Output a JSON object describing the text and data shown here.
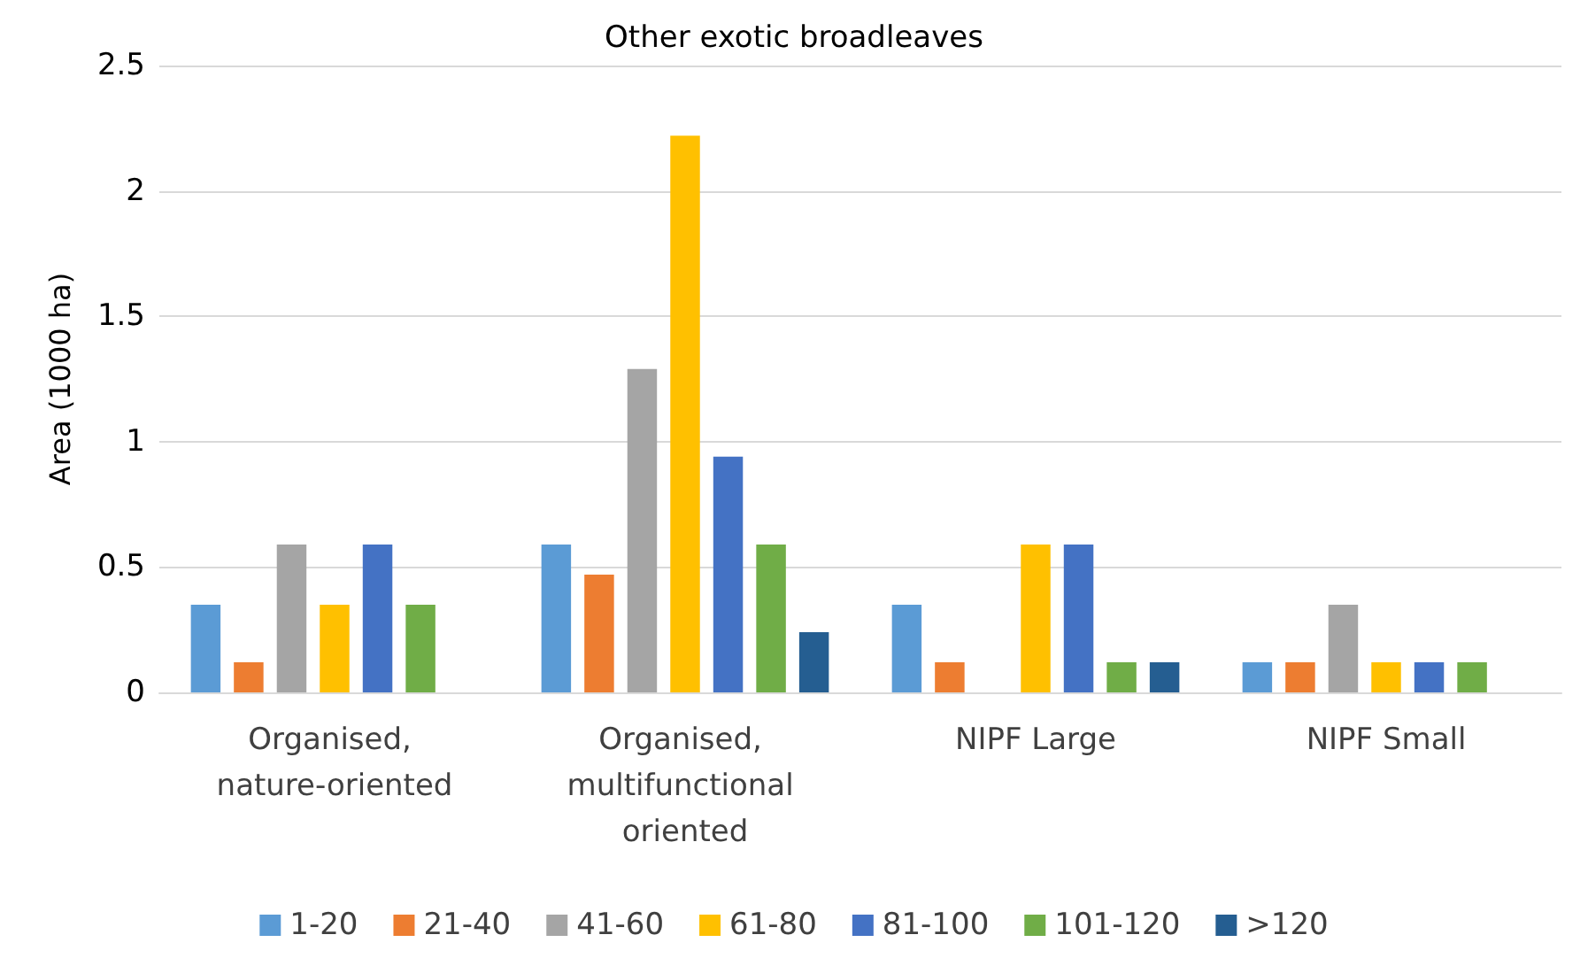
{
  "chart_data": {
    "type": "bar",
    "title": "Other exotic broadleaves",
    "ylabel": "Area (1000 ha)",
    "categories": [
      "Organised, nature-oriented",
      "Organised, multifunctional oriented",
      "NIPF Large",
      "NIPF Small"
    ],
    "series": [
      {
        "name": "1-20",
        "color": "#5b9bd5",
        "values": [
          0.35,
          0.59,
          0.35,
          0.12
        ]
      },
      {
        "name": "21-40",
        "color": "#ed7d31",
        "values": [
          0.12,
          0.47,
          0.12,
          0.12
        ]
      },
      {
        "name": "41-60",
        "color": "#a5a5a5",
        "values": [
          0.59,
          1.29,
          null,
          0.35
        ]
      },
      {
        "name": "61-80",
        "color": "#ffc000",
        "values": [
          0.35,
          2.22,
          0.59,
          0.12
        ]
      },
      {
        "name": "81-100",
        "color": "#4472c4",
        "values": [
          0.59,
          0.94,
          0.59,
          0.12
        ]
      },
      {
        "name": "101-120",
        "color": "#70ad47",
        "values": [
          0.35,
          0.59,
          0.12,
          0.12
        ]
      },
      {
        "name": ">120",
        "color": "#255e91",
        "values": [
          null,
          0.24,
          0.12,
          null
        ]
      }
    ],
    "ylim": [
      0,
      2.5
    ],
    "yticks": [
      0,
      0.5,
      1,
      1.5,
      2,
      2.5
    ],
    "grid": "y",
    "legend": "bottom"
  }
}
